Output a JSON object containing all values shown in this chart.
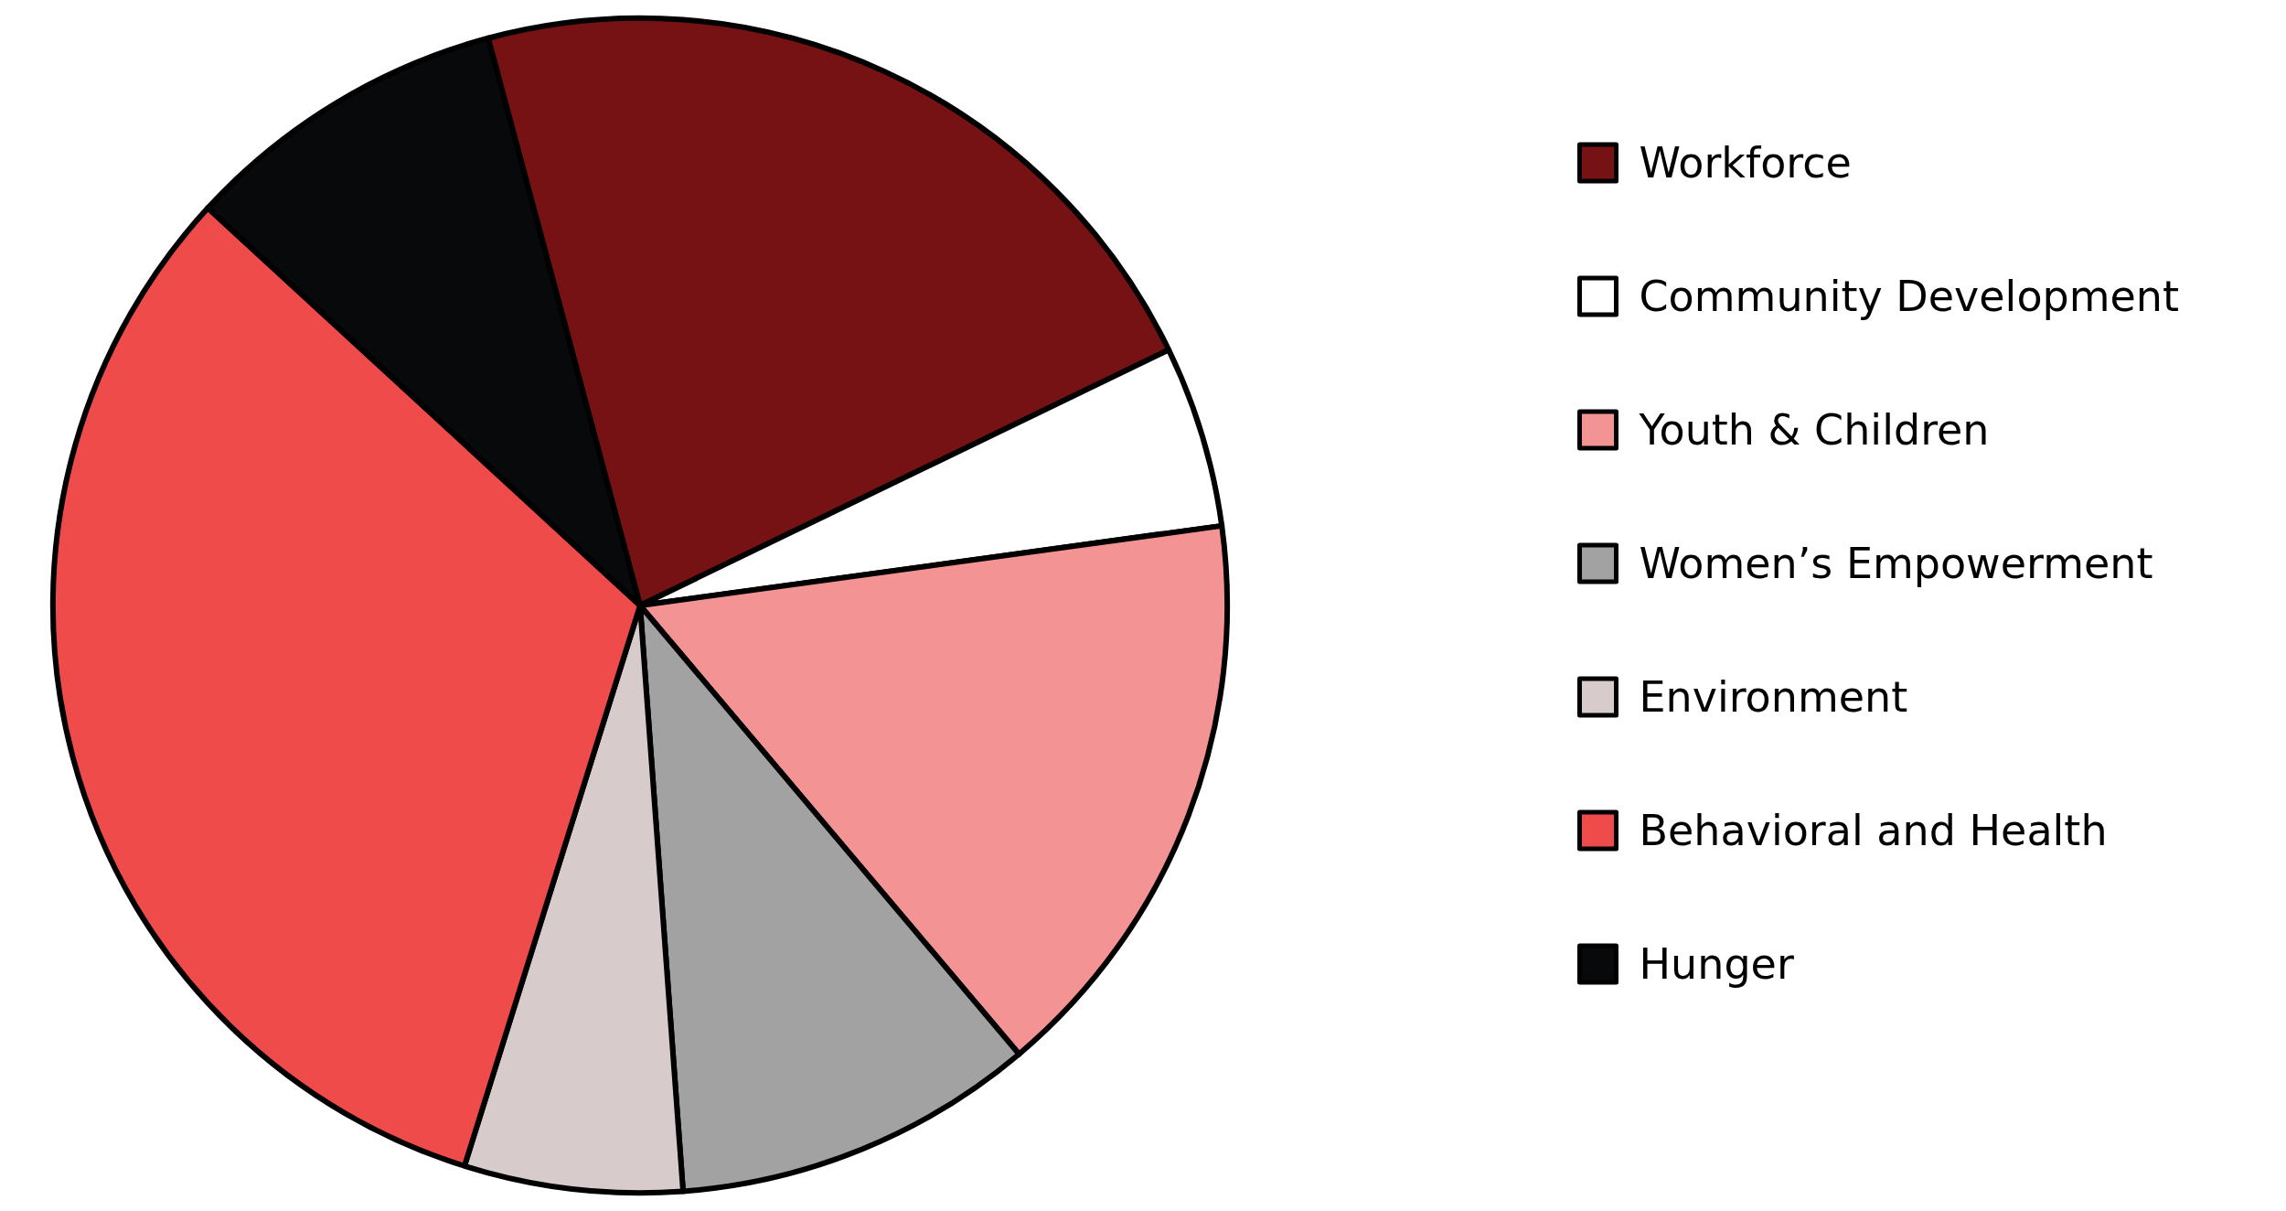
{
  "chart_data": {
    "type": "pie",
    "categories": [
      "Workforce",
      "Community Development",
      "Youth & Children",
      "Women’s Empowerment",
      "Environment",
      "Behavioral and Health",
      "Hunger"
    ],
    "values": [
      22,
      5,
      16,
      10,
      6,
      32,
      9
    ],
    "colors": [
      "#761114",
      "#ffffff",
      "#f49393",
      "#a2a2a2",
      "#d7cbcb",
      "#ef4b4b",
      "#08090b"
    ],
    "legend": "right"
  }
}
